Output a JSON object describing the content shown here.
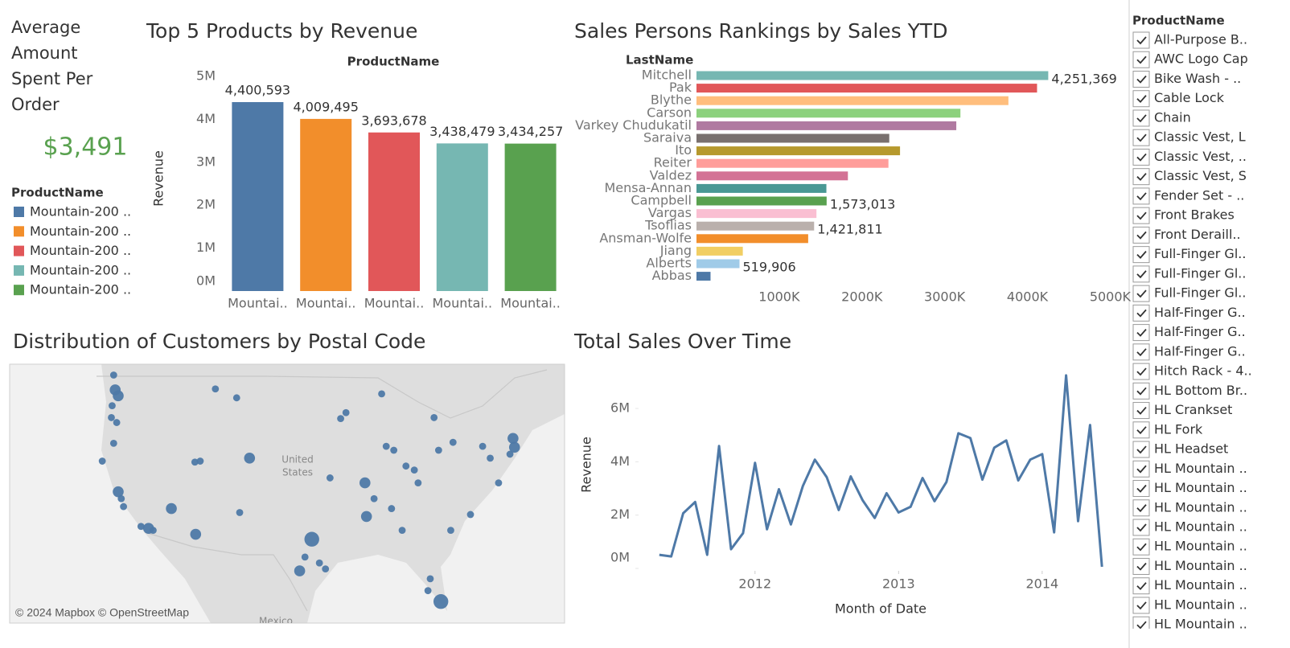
{
  "kpi": {
    "title": "Average Amount Spent Per Order",
    "value": "$3,491"
  },
  "chart_data": [
    {
      "type": "bar",
      "title": "Top 5 Products by Revenue",
      "x_label": "ProductName",
      "y_label": "Revenue",
      "categories": [
        "Mountai..",
        "Mountai..",
        "Mountai..",
        "Mountai..",
        "Mountai.."
      ],
      "values": [
        4400593,
        4009495,
        3693678,
        3438479,
        3434257
      ],
      "value_labels": [
        "4,400,593",
        "4,009,495",
        "3,693,678",
        "3,438,479",
        "3,434,257"
      ],
      "colors": [
        "#4e79a7",
        "#f28e2b",
        "#e15759",
        "#76b7b2",
        "#59a14f"
      ],
      "ylim": [
        0,
        5000000
      ],
      "yticks": [
        {
          "value": 0,
          "label": "0M"
        },
        {
          "value": 1000000,
          "label": "1M"
        },
        {
          "value": 2000000,
          "label": "2M"
        },
        {
          "value": 3000000,
          "label": "3M"
        },
        {
          "value": 4000000,
          "label": "4M"
        },
        {
          "value": 5000000,
          "label": "5M"
        }
      ],
      "legend": {
        "title": "ProductName",
        "labels": [
          "Mountain-200 ..",
          "Mountain-200 ..",
          "Mountain-200 ..",
          "Mountain-200 ..",
          "Mountain-200 .."
        ]
      },
      "grid": false
    },
    {
      "type": "bar",
      "orientation": "horizontal",
      "title": "Sales Persons Rankings by Sales YTD",
      "y_label": "LastName",
      "categories": [
        "Mitchell",
        "Pak",
        "Blythe",
        "Carson",
        "Varkey Chudukatil",
        "Saraiva",
        "Ito",
        "Reiter",
        "Valdez",
        "Mensa-Annan",
        "Campbell",
        "Vargas",
        "Tsoflias",
        "Ansman-Wolfe",
        "Jiang",
        "Alberts",
        "Abbas"
      ],
      "values": [
        4251369,
        4116000,
        3770000,
        3190000,
        3140000,
        2330000,
        2460000,
        2320000,
        1830000,
        1570000,
        1573013,
        1450000,
        1421811,
        1350000,
        560000,
        519906,
        170000
      ],
      "value_labels": [
        "4,251,369",
        null,
        null,
        null,
        null,
        null,
        null,
        null,
        null,
        null,
        "1,573,013",
        null,
        "1,421,811",
        null,
        null,
        "519,906",
        null
      ],
      "colors": [
        "#76b7b2",
        "#e15759",
        "#ffbe7d",
        "#8cd17d",
        "#b07aa1",
        "#79706e",
        "#b6992d",
        "#ff9d9a",
        "#d37295",
        "#499894",
        "#59a14f",
        "#fabfd2",
        "#bab0ac",
        "#f28e2b",
        "#f1ce63",
        "#a0cbe8",
        "#4e79a7"
      ],
      "xlim": [
        0,
        5200000
      ],
      "xticks": [
        {
          "value": 1000000,
          "label": "1000K"
        },
        {
          "value": 2000000,
          "label": "2000K"
        },
        {
          "value": 3000000,
          "label": "3000K"
        },
        {
          "value": 4000000,
          "label": "4000K"
        },
        {
          "value": 5000000,
          "label": "5000K"
        }
      ],
      "grid": false
    },
    {
      "type": "map",
      "title": "Distribution of Customers by Postal Code",
      "attribution": "© 2024 Mapbox © OpenStreetMap",
      "place_labels": [
        "United",
        "States",
        "Mexico"
      ],
      "color": "#4e79a7",
      "lon": [
        -122.8,
        -122.6,
        -122.2,
        -123.0,
        -123.1,
        -122.4,
        -122.8,
        -124.3,
        -122.2,
        -121.8,
        -121.5,
        -119.2,
        -118.2,
        -117.6,
        -115.2,
        -112.0,
        -112.1,
        -111.4,
        -106.2,
        -104.9,
        -106.6,
        -109.4,
        -89.7,
        -89.5,
        -96.7,
        -97.6,
        -98.3,
        -95.7,
        -94.9,
        -92.9,
        -92.2,
        -87.5,
        -86.9,
        -85.9,
        -86.2,
        -84.8,
        -83.2,
        -80.0,
        -80.6,
        -78.1,
        -74.2,
        -70.2,
        -70.0,
        -70.6,
        -72.1,
        -75.8,
        -78.4,
        -81.1,
        -79.7,
        -81.4,
        -73.2,
        -84.3,
        -82.7,
        -88.5,
        -94.3
      ],
      "lat": [
        48.7,
        47.2,
        46.6,
        45.6,
        44.4,
        43.9,
        41.8,
        40.0,
        36.9,
        36.2,
        35.4,
        33.4,
        33.2,
        33.0,
        35.2,
        32.6,
        39.9,
        40.0,
        34.8,
        40.3,
        46.4,
        47.3,
        37.8,
        34.4,
        32.1,
        30.3,
        28.9,
        29.7,
        29.1,
        44.3,
        44.9,
        46.8,
        41.5,
        41.1,
        35.2,
        33.0,
        39.1,
        41.1,
        44.4,
        41.9,
        41.5,
        42.3,
        41.4,
        40.7,
        37.8,
        34.6,
        33.0,
        28.1,
        25.8,
        26.9,
        40.3,
        39.5,
        37.8,
        36.2,
        38.3
      ],
      "sizes": [
        1,
        2,
        2,
        1,
        1,
        1,
        1,
        1,
        2,
        1,
        1,
        1,
        2,
        1,
        2,
        2,
        1,
        1,
        1,
        2,
        1,
        1,
        2,
        2,
        3,
        1,
        2,
        1,
        1,
        1,
        1,
        1,
        1,
        1,
        1,
        1,
        1,
        1,
        1,
        1,
        1,
        2,
        2,
        1,
        1,
        1,
        1,
        1,
        3,
        1,
        1,
        1,
        1,
        1,
        1
      ]
    },
    {
      "type": "line",
      "title": "Total Sales Over Time",
      "x_label": "Month of Date",
      "y_label": "Revenue",
      "color": "#4e79a7",
      "x": [
        "2011-05",
        "2011-06",
        "2011-07",
        "2011-08",
        "2011-09",
        "2011-10",
        "2011-11",
        "2011-12",
        "2012-01",
        "2012-02",
        "2012-03",
        "2012-04",
        "2012-05",
        "2012-06",
        "2012-07",
        "2012-08",
        "2012-09",
        "2012-10",
        "2012-11",
        "2012-12",
        "2013-01",
        "2013-02",
        "2013-03",
        "2013-04",
        "2013-05",
        "2013-06",
        "2013-07",
        "2013-08",
        "2013-09",
        "2013-10",
        "2013-11",
        "2013-12",
        "2014-01",
        "2014-02",
        "2014-03",
        "2014-04",
        "2014-05",
        "2014-06"
      ],
      "values": [
        510000,
        450000,
        2070000,
        2490000,
        510000,
        4590000,
        720000,
        1320000,
        3960000,
        1470000,
        2970000,
        1650000,
        3090000,
        4080000,
        3420000,
        2190000,
        3450000,
        2550000,
        1890000,
        2820000,
        2100000,
        2310000,
        3390000,
        2520000,
        3240000,
        5070000,
        4890000,
        3330000,
        4530000,
        4800000,
        3300000,
        4080000,
        4290000,
        1350000,
        7240000,
        1770000,
        5380000,
        60000
      ],
      "xlim": [
        "2011-03",
        "2014-08"
      ],
      "xticks": [
        "2012",
        "2013",
        "2014"
      ],
      "ylim": [
        0,
        7600000
      ],
      "yticks": [
        {
          "value": 0,
          "label": "0M"
        },
        {
          "value": 2000000,
          "label": "2M"
        },
        {
          "value": 4000000,
          "label": "4M"
        },
        {
          "value": 6000000,
          "label": "6M"
        }
      ],
      "grid": false
    }
  ],
  "filter": {
    "title": "ProductName",
    "items": [
      "All-Purpose B..",
      "AWC Logo Cap",
      "Bike Wash - ..",
      "Cable Lock",
      "Chain",
      "Classic Vest, L",
      "Classic Vest, ..",
      "Classic Vest, S",
      "Fender Set - ..",
      "Front Brakes",
      "Front Deraill..",
      "Full-Finger Gl..",
      "Full-Finger Gl..",
      "Full-Finger Gl..",
      "Half-Finger G..",
      "Half-Finger G..",
      "Half-Finger G..",
      "Hitch Rack - 4..",
      "HL Bottom Br..",
      "HL Crankset",
      "HL Fork",
      "HL Headset",
      "HL Mountain ..",
      "HL Mountain ..",
      "HL Mountain ..",
      "HL Mountain ..",
      "HL Mountain ..",
      "HL Mountain ..",
      "HL Mountain ..",
      "HL Mountain ..",
      "HL Mountain .."
    ]
  }
}
